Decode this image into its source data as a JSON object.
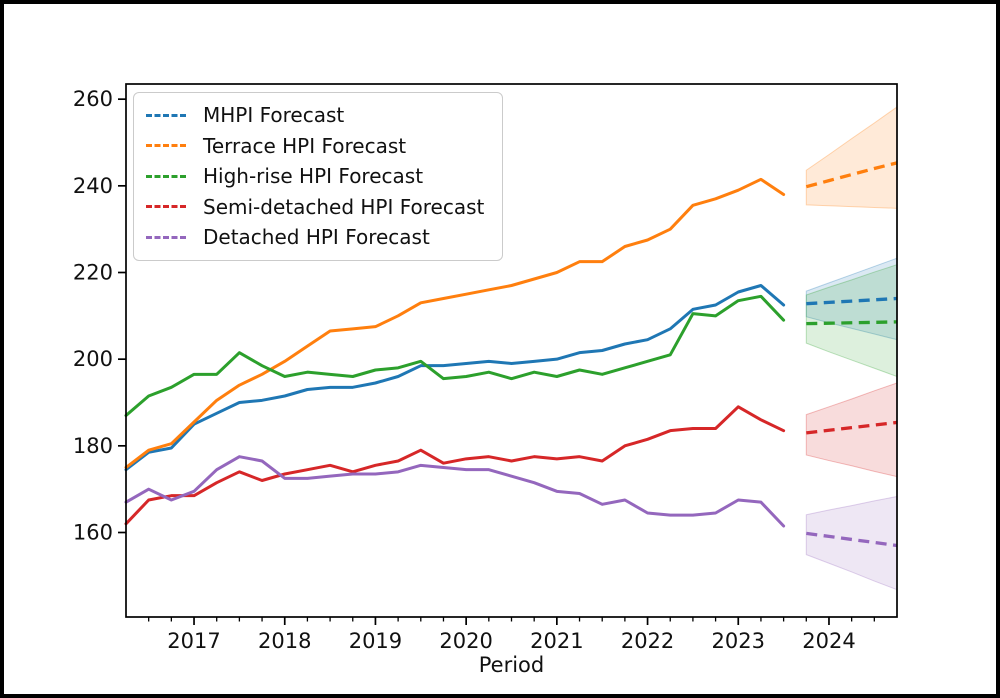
{
  "chart_data": {
    "type": "line",
    "title": "",
    "xlabel": "Period",
    "ylabel": "",
    "grid": false,
    "legend_position": "upper left",
    "xlim": [
      2016.25,
      2024.75
    ],
    "ylim": [
      140.5,
      263.5
    ],
    "x_ticks": [
      2017,
      2018,
      2019,
      2020,
      2021,
      2022,
      2023,
      2024
    ],
    "x_minor_tick_interval": 0.25,
    "y_ticks": [
      160,
      180,
      200,
      220,
      240,
      260
    ],
    "history_style": "solid",
    "forecast_style": "dashed",
    "band_fill_opacity": 0.16,
    "x_history": [
      2016.25,
      2016.5,
      2016.75,
      2017.0,
      2017.25,
      2017.5,
      2017.75,
      2018.0,
      2018.25,
      2018.5,
      2018.75,
      2019.0,
      2019.25,
      2019.5,
      2019.75,
      2020.0,
      2020.25,
      2020.5,
      2020.75,
      2021.0,
      2021.25,
      2021.5,
      2021.75,
      2022.0,
      2022.25,
      2022.5,
      2022.75,
      2023.0,
      2023.25,
      2023.5
    ],
    "x_forecast": [
      2023.75,
      2024.0,
      2024.25,
      2024.5,
      2024.75
    ],
    "series": [
      {
        "key": "mhpi",
        "label": "MHPI Forecast",
        "color": "#1f77b4",
        "history": [
          174.5,
          178.5,
          179.5,
          185,
          187.5,
          190,
          190.5,
          191.5,
          193,
          193.5,
          193.5,
          194.5,
          196,
          198.5,
          198.5,
          199,
          199.5,
          199,
          199.5,
          200,
          201.5,
          202,
          203.5,
          204.5,
          207,
          211.5,
          212.5,
          215.5,
          217,
          212.5
        ],
        "forecast": [
          212.8,
          213.1,
          213.4,
          213.7,
          214
        ],
        "ci_lower": [
          209.8,
          208.4,
          207.1,
          205.8,
          204.5
        ],
        "ci_upper": [
          215.7,
          217.6,
          219.5,
          221.4,
          223.3
        ]
      },
      {
        "key": "terrace",
        "label": "Terrace HPI Forecast",
        "color": "#ff7f0e",
        "history": [
          175,
          179,
          180.5,
          185.5,
          190.5,
          194,
          196.5,
          199.5,
          203,
          206.5,
          207,
          207.5,
          210,
          213,
          214,
          215,
          216,
          217,
          218.5,
          220,
          222.5,
          222.5,
          226,
          227.5,
          230,
          235.5,
          237,
          239,
          241.5,
          238
        ],
        "forecast": [
          239.8,
          241.2,
          242.6,
          244,
          245.3
        ],
        "ci_lower": [
          235.6,
          235.4,
          235.2,
          235,
          234.8
        ],
        "ci_upper": [
          243.6,
          247.2,
          250.9,
          254.5,
          258.2
        ]
      },
      {
        "key": "high-rise",
        "label": "High-rise HPI Forecast",
        "color": "#2ca02c",
        "history": [
          187,
          191.5,
          193.5,
          196.5,
          196.5,
          201.5,
          198.5,
          196,
          197,
          196.5,
          196,
          197.5,
          198,
          199.5,
          195.5,
          196,
          197,
          195.5,
          197,
          196,
          197.5,
          196.5,
          198,
          199.5,
          201,
          210.5,
          210,
          213.5,
          214.5,
          209
        ],
        "forecast": [
          208.2,
          208.3,
          208.4,
          208.5,
          208.6
        ],
        "ci_lower": [
          203.7,
          201.7,
          199.8,
          197.9,
          196
        ],
        "ci_upper": [
          214.8,
          216.6,
          218.3,
          220.1,
          221.8
        ]
      },
      {
        "key": "semi-detached",
        "label": "Semi-detached HPI Forecast",
        "color": "#d62728",
        "history": [
          162,
          167.5,
          168.5,
          168.5,
          171.5,
          174,
          172,
          173.5,
          174.5,
          175.5,
          174,
          175.5,
          176.5,
          179,
          176,
          177,
          177.5,
          176.5,
          177.5,
          177,
          177.5,
          176.5,
          180,
          181.5,
          183.5,
          184,
          184,
          189,
          186,
          183.5
        ],
        "forecast": [
          183,
          183.6,
          184.2,
          184.8,
          185.4
        ],
        "ci_lower": [
          177.9,
          176.6,
          175.4,
          174.1,
          172.9
        ],
        "ci_upper": [
          187.2,
          189,
          190.8,
          192.7,
          194.5
        ]
      },
      {
        "key": "detached",
        "label": "Detached HPI Forecast",
        "color": "#9467bd",
        "history": [
          167,
          170,
          167.5,
          169.5,
          174.5,
          177.5,
          176.5,
          172.5,
          172.5,
          173,
          173.5,
          173.5,
          174,
          175.5,
          175,
          174.5,
          174.5,
          173,
          171.5,
          169.5,
          169,
          166.5,
          167.5,
          164.5,
          164,
          164,
          164.5,
          167.5,
          167,
          161.5
        ],
        "forecast": [
          159.8,
          159.1,
          158.4,
          157.7,
          157
        ],
        "ci_lower": [
          154.9,
          152.9,
          150.9,
          148.8,
          146.8
        ],
        "ci_upper": [
          164.1,
          165.2,
          166.2,
          167.3,
          168.3
        ]
      }
    ]
  }
}
